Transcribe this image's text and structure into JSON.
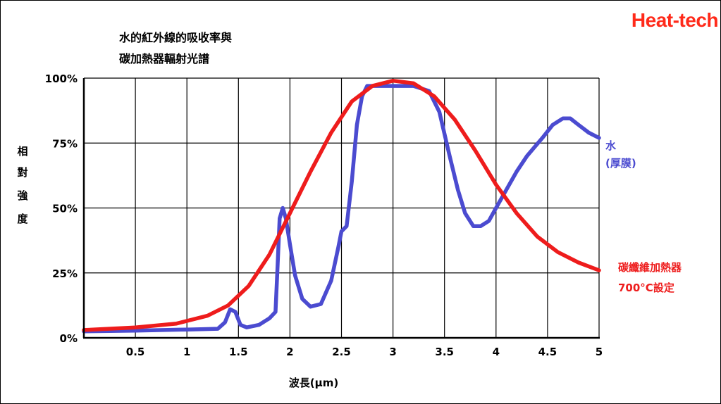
{
  "brand": "Heat-tech",
  "chart_data": {
    "type": "line",
    "title": [
      "水的紅外線的吸收率與",
      "碳加熱器輻射光譜"
    ],
    "ylabel": [
      "相",
      "對",
      "強",
      "度"
    ],
    "xlabel": "波長(μm)",
    "xlim": [
      0,
      5
    ],
    "ylim": [
      0,
      100
    ],
    "x_ticks": [
      0.5,
      1,
      1.5,
      2,
      2.5,
      3,
      3.5,
      4,
      4.5,
      5
    ],
    "x_tick_labels": [
      "0.5",
      "1",
      "1.5",
      "2",
      "2.5",
      "3",
      "3.5",
      "4",
      "4.5",
      "5"
    ],
    "y_ticks": [
      0,
      25,
      50,
      75,
      100
    ],
    "y_tick_labels": [
      "0%",
      "25%",
      "50%",
      "75%",
      "100%"
    ],
    "grid": true,
    "series": [
      {
        "name": "水(厚膜)",
        "label_lines": [
          "水",
          "(厚膜)"
        ],
        "color": "#4b4bd0",
        "points": [
          [
            0,
            2.5
          ],
          [
            0.5,
            2.8
          ],
          [
            1,
            3.2
          ],
          [
            1.3,
            3.5
          ],
          [
            1.37,
            6
          ],
          [
            1.42,
            11
          ],
          [
            1.47,
            10
          ],
          [
            1.52,
            5
          ],
          [
            1.58,
            4
          ],
          [
            1.7,
            5
          ],
          [
            1.8,
            7.5
          ],
          [
            1.86,
            10
          ],
          [
            1.88,
            28
          ],
          [
            1.9,
            46
          ],
          [
            1.93,
            50
          ],
          [
            1.96,
            46
          ],
          [
            2.0,
            36
          ],
          [
            2.05,
            24
          ],
          [
            2.12,
            15
          ],
          [
            2.2,
            12
          ],
          [
            2.3,
            13
          ],
          [
            2.4,
            22
          ],
          [
            2.47,
            35
          ],
          [
            2.5,
            41
          ],
          [
            2.55,
            43
          ],
          [
            2.6,
            60
          ],
          [
            2.65,
            82
          ],
          [
            2.7,
            93
          ],
          [
            2.75,
            97
          ],
          [
            3.0,
            97
          ],
          [
            3.2,
            97
          ],
          [
            3.35,
            95
          ],
          [
            3.45,
            87
          ],
          [
            3.55,
            70
          ],
          [
            3.63,
            57
          ],
          [
            3.7,
            48
          ],
          [
            3.78,
            43
          ],
          [
            3.85,
            43
          ],
          [
            3.93,
            45
          ],
          [
            4.0,
            50
          ],
          [
            4.1,
            57
          ],
          [
            4.2,
            64
          ],
          [
            4.3,
            70
          ],
          [
            4.45,
            77
          ],
          [
            4.55,
            82
          ],
          [
            4.65,
            84.5
          ],
          [
            4.72,
            84.5
          ],
          [
            4.8,
            82
          ],
          [
            4.9,
            79
          ],
          [
            5.0,
            77
          ]
        ]
      },
      {
        "name": "碳纖維加熱器 700°C設定",
        "label_lines": [
          "碳纖維加熱器",
          "700°C設定"
        ],
        "color": "#ee1c1c",
        "points": [
          [
            0,
            3
          ],
          [
            0.5,
            4
          ],
          [
            0.9,
            5.5
          ],
          [
            1.2,
            8.5
          ],
          [
            1.4,
            12.5
          ],
          [
            1.6,
            20
          ],
          [
            1.8,
            32
          ],
          [
            2.0,
            48
          ],
          [
            2.2,
            64
          ],
          [
            2.4,
            79
          ],
          [
            2.6,
            91
          ],
          [
            2.8,
            97
          ],
          [
            3.0,
            99
          ],
          [
            3.2,
            98
          ],
          [
            3.4,
            93
          ],
          [
            3.6,
            84
          ],
          [
            3.8,
            72
          ],
          [
            4.0,
            59
          ],
          [
            4.2,
            48
          ],
          [
            4.4,
            39
          ],
          [
            4.6,
            33
          ],
          [
            4.8,
            29
          ],
          [
            5.0,
            26
          ]
        ]
      }
    ]
  }
}
